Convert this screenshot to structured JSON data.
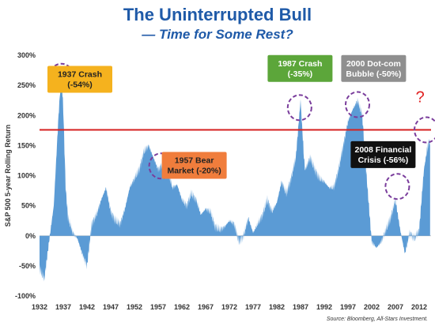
{
  "title": "The Uninterrupted Bull",
  "subtitle": "— Time for Some Rest?",
  "source": "Source: Bloomberg, All-Stars Investment.",
  "chart_data": {
    "type": "area",
    "ylabel": "S&P 500 5-year Rolling Return",
    "xlabel": "",
    "xlim": [
      1932,
      2014.5
    ],
    "ylim": [
      -100,
      300
    ],
    "yticks": [
      "300%",
      "250%",
      "200%",
      "150%",
      "100%",
      "50%",
      "0%",
      "-50%",
      "-100%"
    ],
    "yticks_values": [
      300,
      250,
      200,
      150,
      100,
      50,
      0,
      -50,
      -100
    ],
    "xticks": [
      "1932",
      "1937",
      "1942",
      "1947",
      "1952",
      "1957",
      "1962",
      "1967",
      "1972",
      "1977",
      "1982",
      "1987",
      "1992",
      "1997",
      "2002",
      "2007",
      "2012"
    ],
    "threshold": 176,
    "colors": {
      "area": "#5b9bd5",
      "threshold": "#d62020",
      "circle": "#7a3d9c",
      "question": "#e02020"
    },
    "series": [
      {
        "values": [
          [
            1932,
            -55
          ],
          [
            1933,
            -72
          ],
          [
            1934,
            -10
          ],
          [
            1935,
            50
          ],
          [
            1936,
            200
          ],
          [
            1936.6,
            270
          ],
          [
            1937,
            210
          ],
          [
            1937.5,
            80
          ],
          [
            1938,
            30
          ],
          [
            1939,
            5
          ],
          [
            1940,
            -5
          ],
          [
            1941,
            -30
          ],
          [
            1942,
            -50
          ],
          [
            1943,
            20
          ],
          [
            1944,
            35
          ],
          [
            1945,
            60
          ],
          [
            1946,
            80
          ],
          [
            1947,
            40
          ],
          [
            1948,
            25
          ],
          [
            1949,
            20
          ],
          [
            1950,
            45
          ],
          [
            1951,
            80
          ],
          [
            1952,
            95
          ],
          [
            1953,
            110
          ],
          [
            1954,
            140
          ],
          [
            1955,
            150
          ],
          [
            1956,
            130
          ],
          [
            1957,
            110
          ],
          [
            1958,
            120
          ],
          [
            1959,
            110
          ],
          [
            1960,
            80
          ],
          [
            1961,
            85
          ],
          [
            1962,
            60
          ],
          [
            1963,
            50
          ],
          [
            1964,
            70
          ],
          [
            1965,
            60
          ],
          [
            1966,
            35
          ],
          [
            1967,
            45
          ],
          [
            1968,
            40
          ],
          [
            1969,
            15
          ],
          [
            1970,
            10
          ],
          [
            1971,
            15
          ],
          [
            1972,
            25
          ],
          [
            1973,
            20
          ],
          [
            1974,
            -10
          ],
          [
            1975,
            0
          ],
          [
            1976,
            30
          ],
          [
            1977,
            5
          ],
          [
            1978,
            20
          ],
          [
            1979,
            35
          ],
          [
            1980,
            60
          ],
          [
            1981,
            40
          ],
          [
            1982,
            55
          ],
          [
            1983,
            90
          ],
          [
            1984,
            70
          ],
          [
            1985,
            95
          ],
          [
            1986,
            130
          ],
          [
            1987,
            225
          ],
          [
            1987.8,
            120
          ],
          [
            1988,
            110
          ],
          [
            1989,
            130
          ],
          [
            1990,
            110
          ],
          [
            1991,
            95
          ],
          [
            1992,
            90
          ],
          [
            1993,
            80
          ],
          [
            1994,
            80
          ],
          [
            1995,
            110
          ],
          [
            1996,
            150
          ],
          [
            1997,
            190
          ],
          [
            1998,
            210
          ],
          [
            1999,
            225
          ],
          [
            2000,
            200
          ],
          [
            2001,
            90
          ],
          [
            2002,
            -10
          ],
          [
            2003,
            -20
          ],
          [
            2004,
            -10
          ],
          [
            2005,
            10
          ],
          [
            2006,
            30
          ],
          [
            2007,
            60
          ],
          [
            2008,
            10
          ],
          [
            2009,
            -30
          ],
          [
            2010,
            5
          ],
          [
            2011,
            -5
          ],
          [
            2012,
            10
          ],
          [
            2013,
            110
          ],
          [
            2013.8,
            150
          ],
          [
            2014.3,
            160
          ]
        ]
      }
    ],
    "annotations": [
      {
        "text": [
          "1937 Crash",
          "(-54%)"
        ],
        "color": "#f5b21e",
        "textColor": "#222",
        "x": 1940.5,
        "y": 260
      },
      {
        "text": [
          "1957 Bear",
          "Market (-20%)"
        ],
        "color": "#f07d3c",
        "textColor": "#222",
        "x": 1964.6,
        "y": 117
      },
      {
        "text": [
          "1987 Crash",
          "(-35%)"
        ],
        "color": "#5ca63a",
        "textColor": "#fff",
        "x": 1986.9,
        "y": 278
      },
      {
        "text": [
          "2000 Dot-com",
          "Bubble (-50%)"
        ],
        "color": "#8f8f8f",
        "textColor": "#fff",
        "x": 2002.4,
        "y": 278
      },
      {
        "text": [
          "2008 Financial",
          "Crisis (-56%)"
        ],
        "color": "#111111",
        "textColor": "#fff",
        "x": 2004.4,
        "y": 135
      }
    ],
    "circled_peaks": [
      {
        "x": 1936.6,
        "y": 265
      },
      {
        "x": 1957.6,
        "y": 116
      },
      {
        "x": 1986.8,
        "y": 213
      },
      {
        "x": 1999.0,
        "y": 218
      },
      {
        "x": 2007.4,
        "y": 82
      },
      {
        "x": 2013.5,
        "y": 176
      }
    ],
    "question": {
      "text": "?",
      "x": 2012.2,
      "y": 222
    }
  }
}
